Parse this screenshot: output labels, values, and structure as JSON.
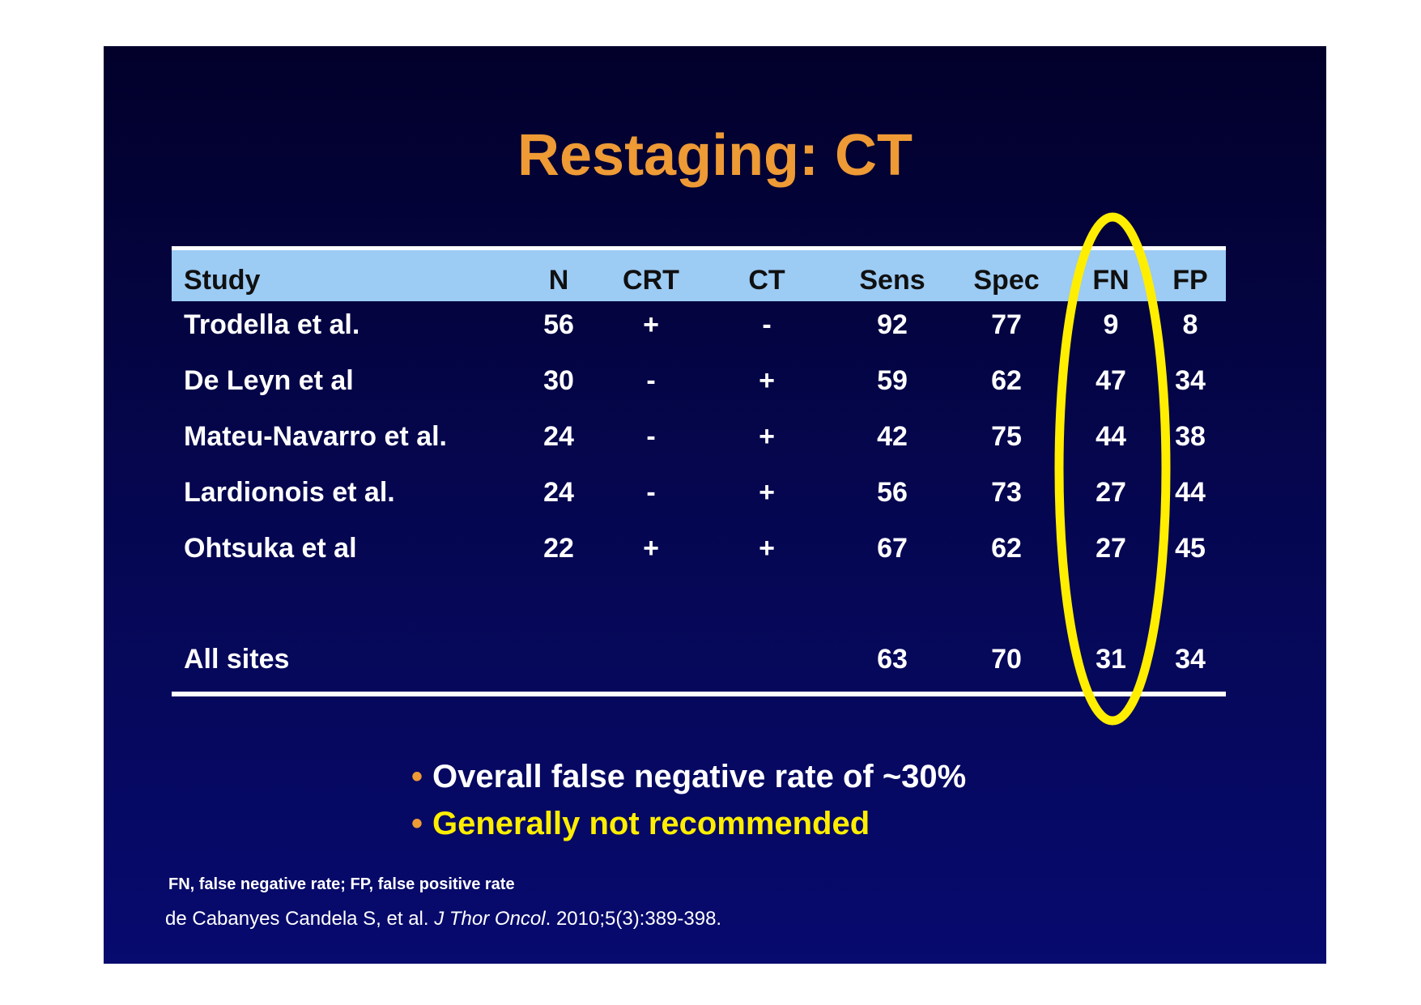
{
  "title": "Restaging: CT",
  "table": {
    "headers": [
      "Study",
      "N",
      "CRT",
      "CT",
      "Sens",
      "Spec",
      "FN",
      "FP"
    ],
    "rows": [
      [
        "Trodella et al.",
        "56",
        "+",
        "-",
        "92",
        "77",
        "9",
        "8"
      ],
      [
        "De Leyn et al",
        "30",
        "-",
        "+",
        "59",
        "62",
        "47",
        "34"
      ],
      [
        "Mateu-Navarro et al.",
        "24",
        "-",
        "+",
        "42",
        "75",
        "44",
        "38"
      ],
      [
        "Lardionois et al.",
        "24",
        "-",
        "+",
        "56",
        "73",
        "27",
        "44"
      ],
      [
        "Ohtsuka et al",
        "22",
        "+",
        "+",
        "67",
        "62",
        "27",
        "45"
      ]
    ],
    "summary": [
      "All sites",
      "",
      "",
      "",
      "63",
      "70",
      "31",
      "34"
    ]
  },
  "highlight": {
    "color": "#ffee00"
  },
  "bullets": [
    "Overall false negative rate of ~30%",
    "Generally not recommended"
  ],
  "footnote": "FN, false negative rate; FP, false positive rate",
  "citation": {
    "authors": "de Cabanyes Candela S, et al. ",
    "journal": "J Thor Oncol",
    "details": ". 2010;5(3):389-398."
  },
  "colors": {
    "title": "#ee9a35",
    "header_bg": "#9ccbf4",
    "bullet_dot": "#ee9a35",
    "bullet_highlight": "#ffee00"
  }
}
